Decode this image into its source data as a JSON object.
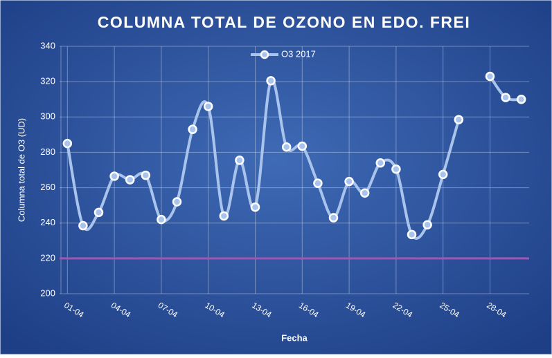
{
  "chart_data": {
    "type": "line",
    "title": "COLUMNA TOTAL DE OZONO EN EDO. FREI",
    "x_label": "Fecha",
    "y_label": "Columna total de O3 (UD)",
    "categories": [
      "01-04",
      null,
      null,
      "04-04",
      null,
      null,
      "07-04",
      null,
      null,
      "10-04",
      null,
      null,
      "13-04",
      null,
      null,
      "16-04",
      null,
      null,
      "19-04",
      null,
      null,
      "22-04",
      null,
      null,
      "25-04",
      null,
      null,
      "28-04",
      null,
      null
    ],
    "series": [
      {
        "name": "O3 2017",
        "color": "#a9c4ec",
        "values": [
          285,
          238.5,
          246,
          266.5,
          264.5,
          267,
          242,
          252,
          293,
          306,
          244,
          275.5,
          249,
          320.5,
          283,
          283.5,
          262.5,
          243,
          263.5,
          257,
          274,
          270.5,
          233.5,
          239,
          267.5,
          298.5,
          null,
          323,
          311,
          310
        ]
      }
    ],
    "reference_line": {
      "value": 220,
      "color": "#9b59b6"
    },
    "ylim": [
      200,
      340
    ],
    "yticks": [
      200,
      220,
      240,
      260,
      280,
      300,
      320,
      340
    ],
    "grid": true,
    "legend": "top"
  }
}
